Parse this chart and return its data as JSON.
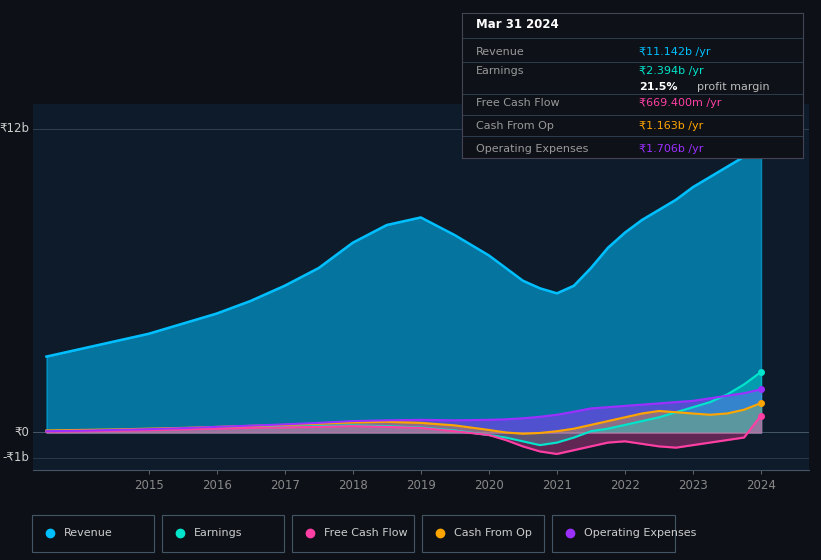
{
  "background_color": "#0d1117",
  "plot_bg_color": "#0d1b2a",
  "years": [
    2013.5,
    2014.0,
    2014.5,
    2015.0,
    2015.5,
    2016.0,
    2016.5,
    2017.0,
    2017.5,
    2018.0,
    2018.5,
    2019.0,
    2019.5,
    2020.0,
    2020.25,
    2020.5,
    2020.75,
    2021.0,
    2021.25,
    2021.5,
    2021.75,
    2022.0,
    2022.25,
    2022.5,
    2022.75,
    2023.0,
    2023.25,
    2023.5,
    2023.75,
    2024.0
  ],
  "revenue": [
    3.0,
    3.3,
    3.6,
    3.9,
    4.3,
    4.7,
    5.2,
    5.8,
    6.5,
    7.5,
    8.2,
    8.5,
    7.8,
    7.0,
    6.5,
    6.0,
    5.7,
    5.5,
    5.8,
    6.5,
    7.3,
    7.9,
    8.4,
    8.8,
    9.2,
    9.7,
    10.1,
    10.5,
    10.9,
    11.142
  ],
  "earnings": [
    0.05,
    0.08,
    0.1,
    0.13,
    0.15,
    0.18,
    0.2,
    0.22,
    0.25,
    0.28,
    0.25,
    0.2,
    0.08,
    -0.1,
    -0.2,
    -0.35,
    -0.5,
    -0.4,
    -0.2,
    0.05,
    0.15,
    0.3,
    0.45,
    0.6,
    0.8,
    1.0,
    1.2,
    1.5,
    1.9,
    2.394
  ],
  "free_cash_flow": [
    0.03,
    0.05,
    0.07,
    0.09,
    0.12,
    0.15,
    0.18,
    0.2,
    0.22,
    0.25,
    0.22,
    0.18,
    0.05,
    -0.1,
    -0.3,
    -0.55,
    -0.75,
    -0.85,
    -0.7,
    -0.55,
    -0.4,
    -0.35,
    -0.45,
    -0.55,
    -0.6,
    -0.5,
    -0.4,
    -0.3,
    -0.2,
    0.6694
  ],
  "cash_from_op": [
    0.08,
    0.1,
    0.12,
    0.15,
    0.18,
    0.22,
    0.26,
    0.3,
    0.35,
    0.4,
    0.42,
    0.38,
    0.28,
    0.1,
    0.0,
    -0.05,
    -0.02,
    0.05,
    0.15,
    0.3,
    0.45,
    0.6,
    0.75,
    0.85,
    0.8,
    0.75,
    0.7,
    0.75,
    0.9,
    1.163
  ],
  "op_expenses": [
    0.05,
    0.07,
    0.1,
    0.13,
    0.17,
    0.22,
    0.27,
    0.32,
    0.38,
    0.45,
    0.48,
    0.5,
    0.48,
    0.5,
    0.52,
    0.56,
    0.62,
    0.7,
    0.82,
    0.95,
    1.0,
    1.05,
    1.1,
    1.15,
    1.2,
    1.25,
    1.35,
    1.45,
    1.55,
    1.706
  ],
  "revenue_color": "#00bfff",
  "earnings_color": "#00e5cc",
  "fcf_color": "#ff3fa4",
  "cashop_color": "#ffa500",
  "opex_color": "#9b30ff",
  "ylabel_top": "₹12b",
  "ylabel_zero": "₹0",
  "ylabel_bottom": "-₹1b",
  "ylim_top": 13.0,
  "ylim_bottom": -1.5,
  "x_tick_labels": [
    "2015",
    "2016",
    "2017",
    "2018",
    "2019",
    "2020",
    "2021",
    "2022",
    "2023",
    "2024"
  ],
  "x_tick_positions": [
    2015,
    2016,
    2017,
    2018,
    2019,
    2020,
    2021,
    2022,
    2023,
    2024
  ],
  "legend_labels": [
    "Revenue",
    "Earnings",
    "Free Cash Flow",
    "Cash From Op",
    "Operating Expenses"
  ],
  "legend_colors": [
    "#00bfff",
    "#00e5cc",
    "#ff3fa4",
    "#ffa500",
    "#9b30ff"
  ],
  "info_box": {
    "date": "Mar 31 2024",
    "revenue_label": "Revenue",
    "revenue_val": "₹11.142b /yr",
    "revenue_color": "#00bfff",
    "earnings_label": "Earnings",
    "earnings_val": "₹2.394b /yr",
    "earnings_color": "#00e5cc",
    "margin_val": "21.5%",
    "margin_text": " profit margin",
    "fcf_label": "Free Cash Flow",
    "fcf_val": "₹669.400m /yr",
    "fcf_color": "#ff3fa4",
    "cashop_label": "Cash From Op",
    "cashop_val": "₹1.163b /yr",
    "cashop_color": "#ffa500",
    "opex_label": "Operating Expenses",
    "opex_val": "₹1.706b /yr",
    "opex_color": "#9b30ff"
  }
}
